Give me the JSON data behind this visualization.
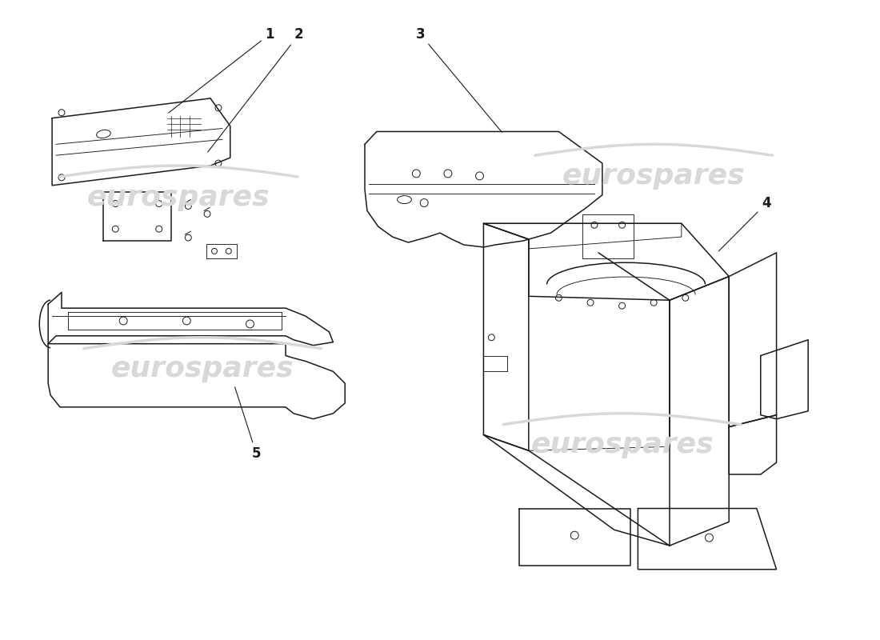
{
  "bg_color": "#ffffff",
  "line_color": "#1a1a1a",
  "watermark_color": "#d8d8d8",
  "watermark_text": "eurospares",
  "font_size_labels": 12,
  "watermark_fontsize": 26
}
